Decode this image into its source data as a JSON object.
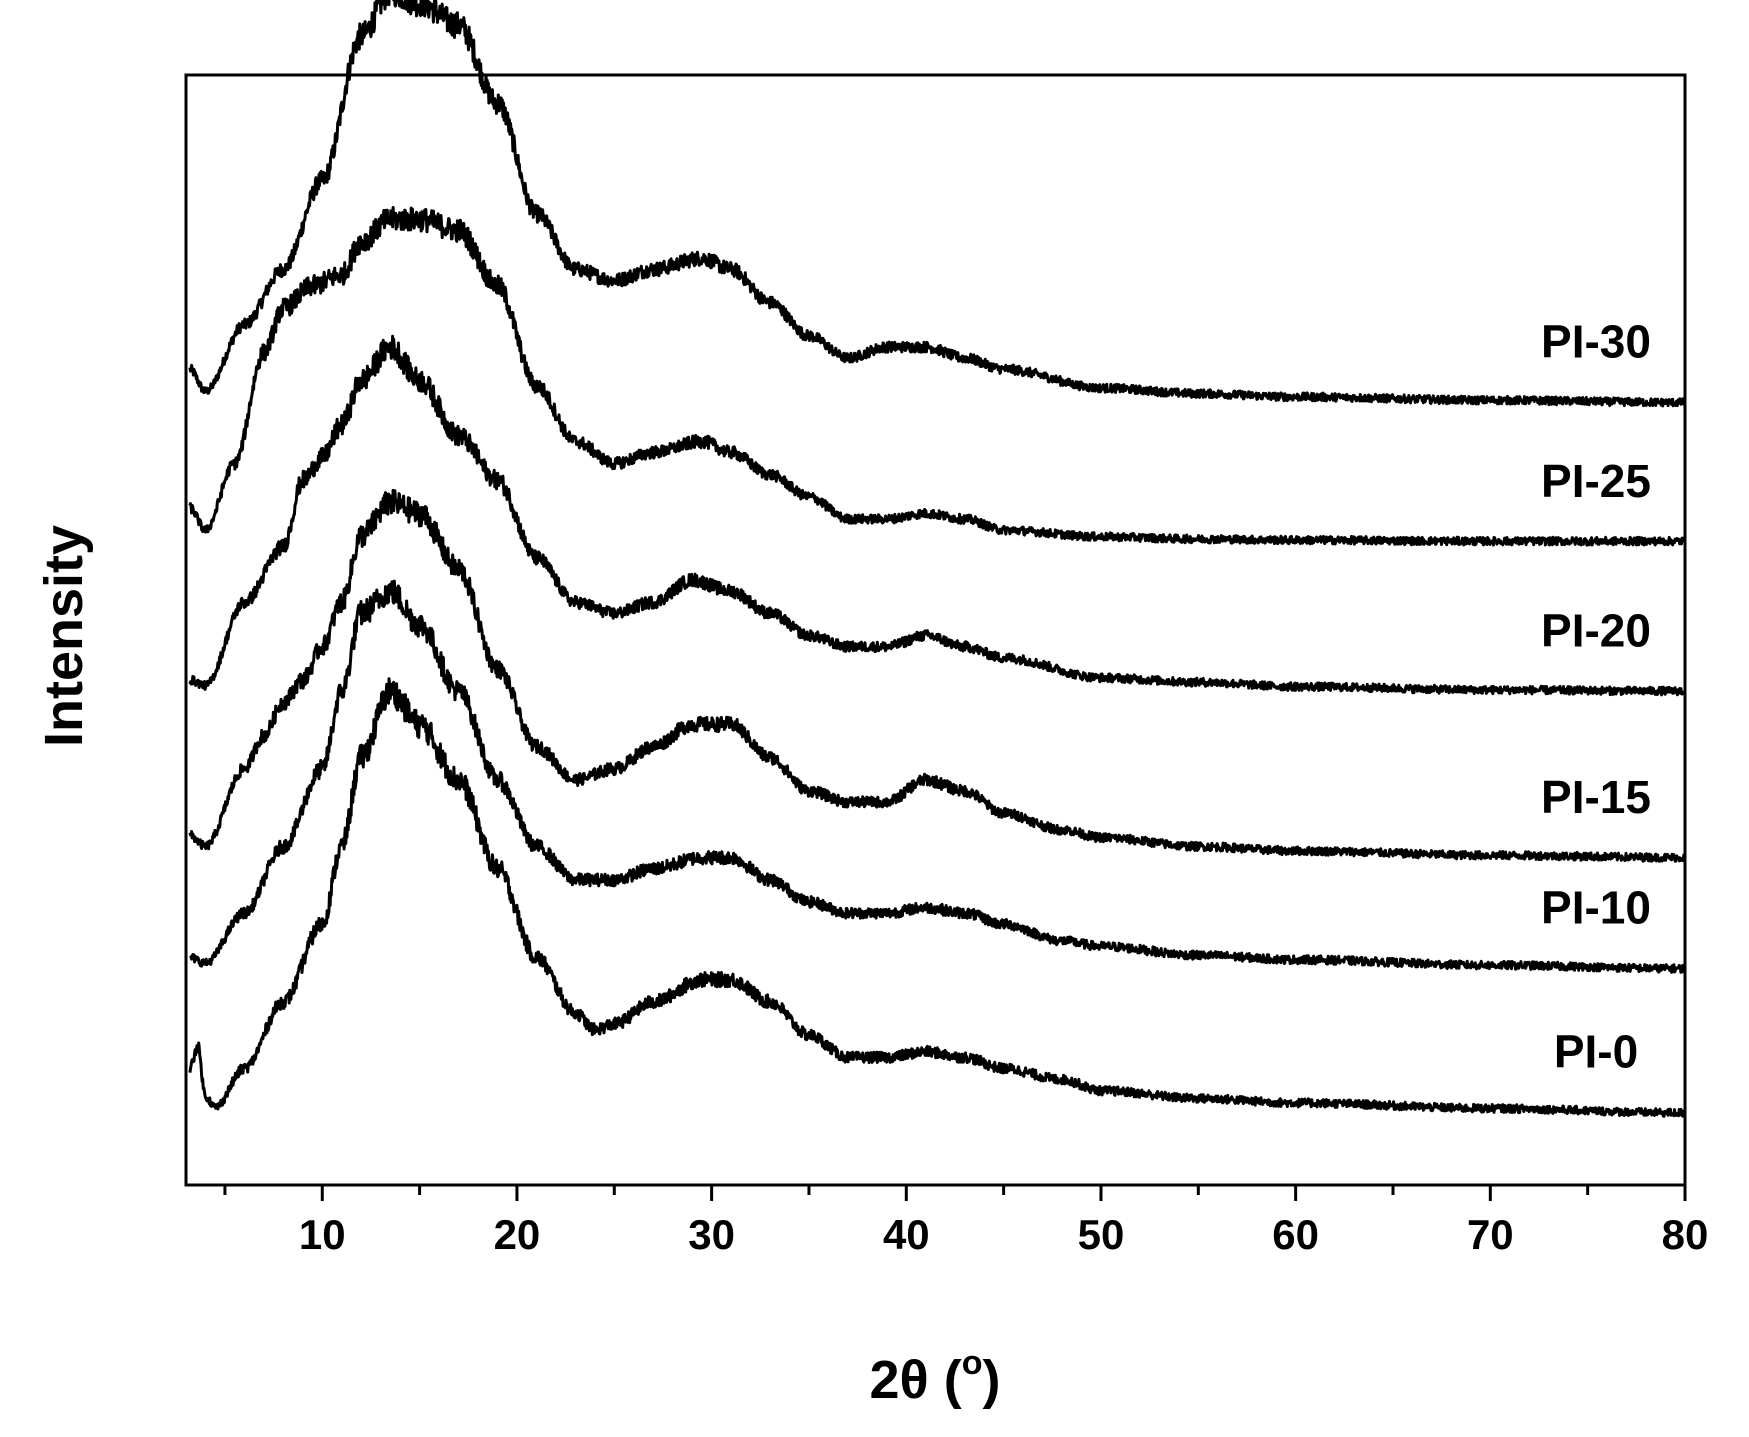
{
  "chart_data": {
    "type": "line",
    "title": "",
    "xlabel": "2θ (°)",
    "xlabel_main": "2θ (",
    "xlabel_degree": "o",
    "xlabel_close": ")",
    "ylabel": "Intensity",
    "xlim": [
      3,
      80
    ],
    "x_ticks": [
      10,
      20,
      30,
      40,
      50,
      60,
      70,
      80
    ],
    "x_tick_labels": [
      "10",
      "20",
      "30",
      "40",
      "50",
      "60",
      "70",
      "80"
    ],
    "x_minor_ticks": [
      5,
      15,
      25,
      35,
      45,
      55,
      65,
      75
    ],
    "y_ticks": [],
    "ylim": [
      0,
      100
    ],
    "grid": false,
    "legend": "inline labels at right",
    "line_color": "#000000",
    "series": [
      {
        "name": "PI-30",
        "offset": 70.5,
        "points": [
          [
            3.2,
            3
          ],
          [
            4,
            1
          ],
          [
            6,
            7
          ],
          [
            8,
            12
          ],
          [
            10,
            20
          ],
          [
            12,
            33
          ],
          [
            13.5,
            37
          ],
          [
            15,
            36
          ],
          [
            17,
            34
          ],
          [
            19,
            27
          ],
          [
            21,
            17
          ],
          [
            23,
            12
          ],
          [
            25,
            11
          ],
          [
            27,
            12
          ],
          [
            29.5,
            13
          ],
          [
            31,
            12
          ],
          [
            33,
            9
          ],
          [
            35,
            6
          ],
          [
            37,
            4
          ],
          [
            39,
            5
          ],
          [
            41,
            5
          ],
          [
            43,
            4
          ],
          [
            45,
            3
          ],
          [
            50,
            1.3
          ],
          [
            55,
            0.8
          ],
          [
            60,
            0.5
          ],
          [
            70,
            0.2
          ],
          [
            80,
            0
          ]
        ]
      },
      {
        "name": "PI-25",
        "offset": 58,
        "points": [
          [
            3.2,
            3
          ],
          [
            4,
            1
          ],
          [
            5.5,
            7
          ],
          [
            7,
            17
          ],
          [
            8,
            21
          ],
          [
            9.5,
            23
          ],
          [
            11,
            24
          ],
          [
            12,
            27
          ],
          [
            13.5,
            29
          ],
          [
            15,
            29
          ],
          [
            17,
            28
          ],
          [
            19,
            23
          ],
          [
            21,
            14
          ],
          [
            23,
            9
          ],
          [
            25,
            7
          ],
          [
            27,
            8
          ],
          [
            29.5,
            9
          ],
          [
            31,
            8
          ],
          [
            33,
            6
          ],
          [
            35,
            4
          ],
          [
            37,
            2
          ],
          [
            39,
            2
          ],
          [
            41,
            2.5
          ],
          [
            43,
            2
          ],
          [
            45,
            1
          ],
          [
            50,
            0.4
          ],
          [
            55,
            0.2
          ],
          [
            60,
            0.1
          ],
          [
            70,
            0
          ],
          [
            80,
            0
          ]
        ]
      },
      {
        "name": "PI-20",
        "offset": 44.5,
        "points": [
          [
            3.2,
            1
          ],
          [
            4,
            0.5
          ],
          [
            6,
            8
          ],
          [
            8,
            13
          ],
          [
            9,
            19
          ],
          [
            10,
            21
          ],
          [
            11,
            24
          ],
          [
            12,
            28
          ],
          [
            13.5,
            31
          ],
          [
            15,
            28
          ],
          [
            17,
            23
          ],
          [
            19,
            19
          ],
          [
            21,
            12
          ],
          [
            23,
            8
          ],
          [
            25,
            7
          ],
          [
            27,
            8
          ],
          [
            29,
            10
          ],
          [
            31,
            9
          ],
          [
            33,
            7
          ],
          [
            35,
            5
          ],
          [
            37,
            4
          ],
          [
            39,
            4
          ],
          [
            41,
            5
          ],
          [
            43,
            4
          ],
          [
            45,
            3
          ],
          [
            50,
            1.2
          ],
          [
            55,
            0.8
          ],
          [
            60,
            0.4
          ],
          [
            70,
            0.1
          ],
          [
            80,
            0
          ]
        ]
      },
      {
        "name": "PI-15",
        "offset": 29.5,
        "points": [
          [
            3.2,
            2
          ],
          [
            4,
            1
          ],
          [
            6,
            8
          ],
          [
            7,
            11
          ],
          [
            8,
            14
          ],
          [
            9,
            16
          ],
          [
            10,
            19
          ],
          [
            11,
            23
          ],
          [
            12,
            29
          ],
          [
            13.5,
            32
          ],
          [
            15,
            31
          ],
          [
            17,
            26
          ],
          [
            19,
            17
          ],
          [
            21,
            10
          ],
          [
            23,
            7
          ],
          [
            25,
            8
          ],
          [
            27,
            10
          ],
          [
            29,
            12
          ],
          [
            31,
            12
          ],
          [
            33,
            9
          ],
          [
            35,
            6
          ],
          [
            37,
            5
          ],
          [
            39,
            5
          ],
          [
            41,
            7
          ],
          [
            43,
            6
          ],
          [
            45,
            4
          ],
          [
            48,
            2.5
          ],
          [
            50,
            1.8
          ],
          [
            55,
            1
          ],
          [
            60,
            0.6
          ],
          [
            70,
            0.2
          ],
          [
            80,
            0
          ]
        ]
      },
      {
        "name": "PI-10",
        "offset": 19.5,
        "points": [
          [
            3.2,
            1
          ],
          [
            4,
            0.5
          ],
          [
            6,
            5
          ],
          [
            8,
            11
          ],
          [
            10,
            18
          ],
          [
            11,
            25
          ],
          [
            12,
            32
          ],
          [
            13.5,
            34
          ],
          [
            15,
            31
          ],
          [
            17,
            25
          ],
          [
            19,
            17
          ],
          [
            21,
            11
          ],
          [
            23,
            8
          ],
          [
            25,
            8
          ],
          [
            27,
            9
          ],
          [
            29.5,
            10
          ],
          [
            31,
            10
          ],
          [
            33,
            8
          ],
          [
            35,
            6
          ],
          [
            37,
            5
          ],
          [
            39,
            5
          ],
          [
            41,
            5.5
          ],
          [
            43,
            5
          ],
          [
            45,
            4
          ],
          [
            48,
            2.5
          ],
          [
            50,
            2
          ],
          [
            55,
            1.2
          ],
          [
            60,
            0.8
          ],
          [
            70,
            0.3
          ],
          [
            80,
            0
          ]
        ]
      },
      {
        "name": "PI-0",
        "offset": 6.5,
        "points": [
          [
            3.2,
            4
          ],
          [
            3.6,
            6
          ],
          [
            4,
            1.5
          ],
          [
            4.5,
            0.5
          ],
          [
            6,
            4
          ],
          [
            8,
            10
          ],
          [
            10,
            17
          ],
          [
            11,
            24
          ],
          [
            12,
            32
          ],
          [
            13.5,
            38
          ],
          [
            15,
            35
          ],
          [
            17,
            30
          ],
          [
            19,
            22
          ],
          [
            21,
            14
          ],
          [
            23,
            9
          ],
          [
            24,
            7.5
          ],
          [
            25,
            8
          ],
          [
            27,
            10
          ],
          [
            29.5,
            12
          ],
          [
            31,
            12
          ],
          [
            33,
            10
          ],
          [
            35,
            7
          ],
          [
            37,
            5
          ],
          [
            39,
            5
          ],
          [
            41,
            5.5
          ],
          [
            43,
            5
          ],
          [
            45,
            4
          ],
          [
            48,
            3
          ],
          [
            50,
            2
          ],
          [
            55,
            1.3
          ],
          [
            60,
            0.9
          ],
          [
            70,
            0.4
          ],
          [
            80,
            0
          ]
        ]
      }
    ]
  }
}
